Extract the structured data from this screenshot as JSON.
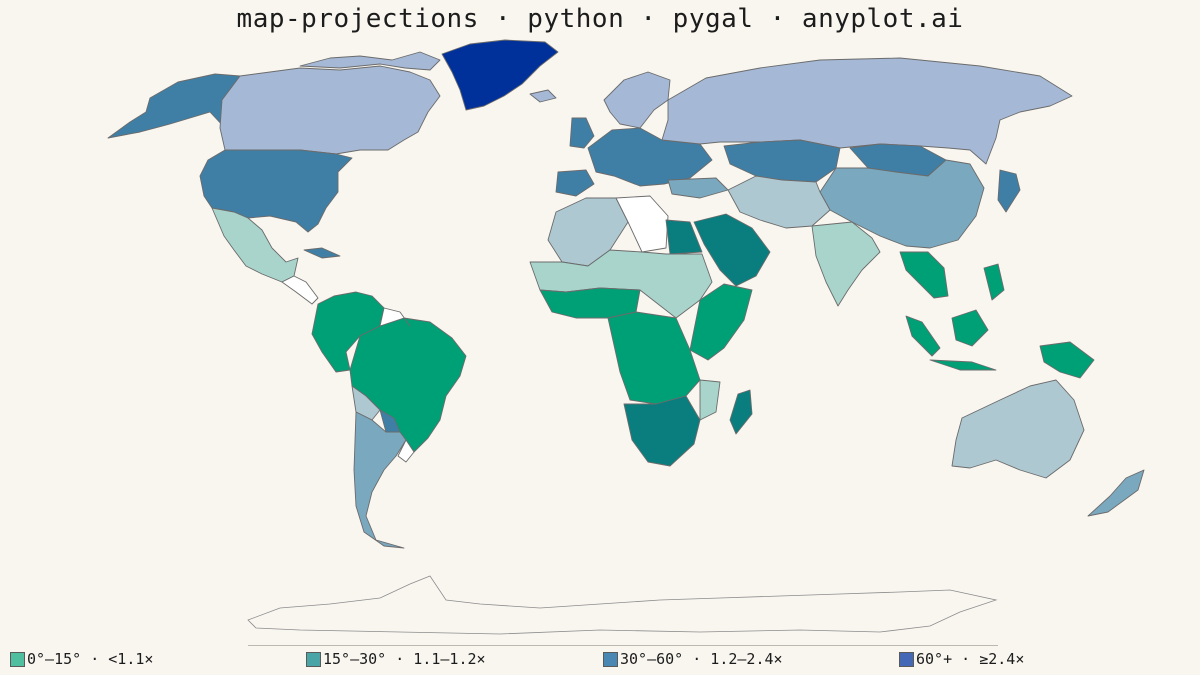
{
  "title": "map-projections · python · pygal · anyplot.ai",
  "colors": {
    "background": "#f9f6f0",
    "border": "#6b6b6b",
    "no_data": "#ffffff",
    "bin_0_15": "#00a076",
    "bin_15_30": "#0a7e7e",
    "bin_30_60": "#3f7fa6",
    "bin_60_plus": "#00309a",
    "tint_green": "#a8d4cc",
    "tint_blue": "#a5b8d5",
    "tint_grey": "#aec8d2",
    "tint_mid": "#7aa8bf"
  },
  "legend": {
    "items": [
      {
        "label": "0°–15° · <1.1×",
        "color": "#4fbf9f"
      },
      {
        "label": "15°–30° · 1.1–1.2×",
        "color": "#4aa6a6"
      },
      {
        "label": "30°–60° · 1.2–2.4×",
        "color": "#4b87b3"
      },
      {
        "label": "60°+ · ≥2.4×",
        "color": "#4468b5"
      }
    ]
  }
}
